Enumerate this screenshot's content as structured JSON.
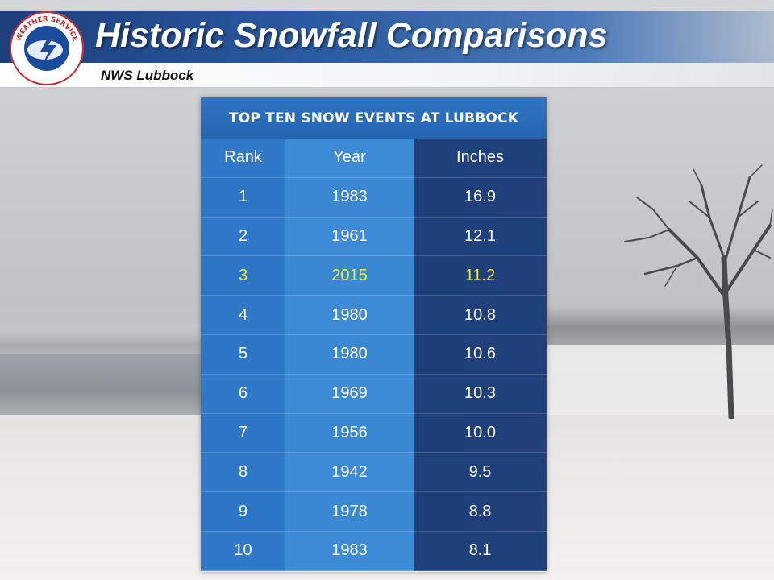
{
  "header": {
    "title": "Historic Snowfall Comparisons",
    "subtitle": "NWS Lubbock",
    "logo_text": "NATIONAL WEATHER SERVICE"
  },
  "colors": {
    "header_blue": "#1d3f7c",
    "table_head": "#2f74c2",
    "rank_col": "#2d76c6",
    "year_col": "#3a88d4",
    "inches_col": "#1b3f78",
    "highlight": "#f2ef3a"
  },
  "chart_data": {
    "type": "table",
    "title": "TOP TEN SNOW EVENTS AT LUBBOCK",
    "columns": [
      "Rank",
      "Year",
      "Inches"
    ],
    "rows": [
      {
        "rank": "1",
        "year": "1983",
        "inches": "16.9",
        "highlight": false
      },
      {
        "rank": "2",
        "year": "1961",
        "inches": "12.1",
        "highlight": false
      },
      {
        "rank": "3",
        "year": "2015",
        "inches": "11.2",
        "highlight": true
      },
      {
        "rank": "4",
        "year": "1980",
        "inches": "10.8",
        "highlight": false
      },
      {
        "rank": "5",
        "year": "1980",
        "inches": "10.6",
        "highlight": false
      },
      {
        "rank": "6",
        "year": "1969",
        "inches": "10.3",
        "highlight": false
      },
      {
        "rank": "7",
        "year": "1956",
        "inches": "10.0",
        "highlight": false
      },
      {
        "rank": "8",
        "year": "1942",
        "inches": "9.5",
        "highlight": false
      },
      {
        "rank": "9",
        "year": "1978",
        "inches": "8.8",
        "highlight": false
      },
      {
        "rank": "10",
        "year": "1983",
        "inches": "8.1",
        "highlight": false
      }
    ]
  }
}
